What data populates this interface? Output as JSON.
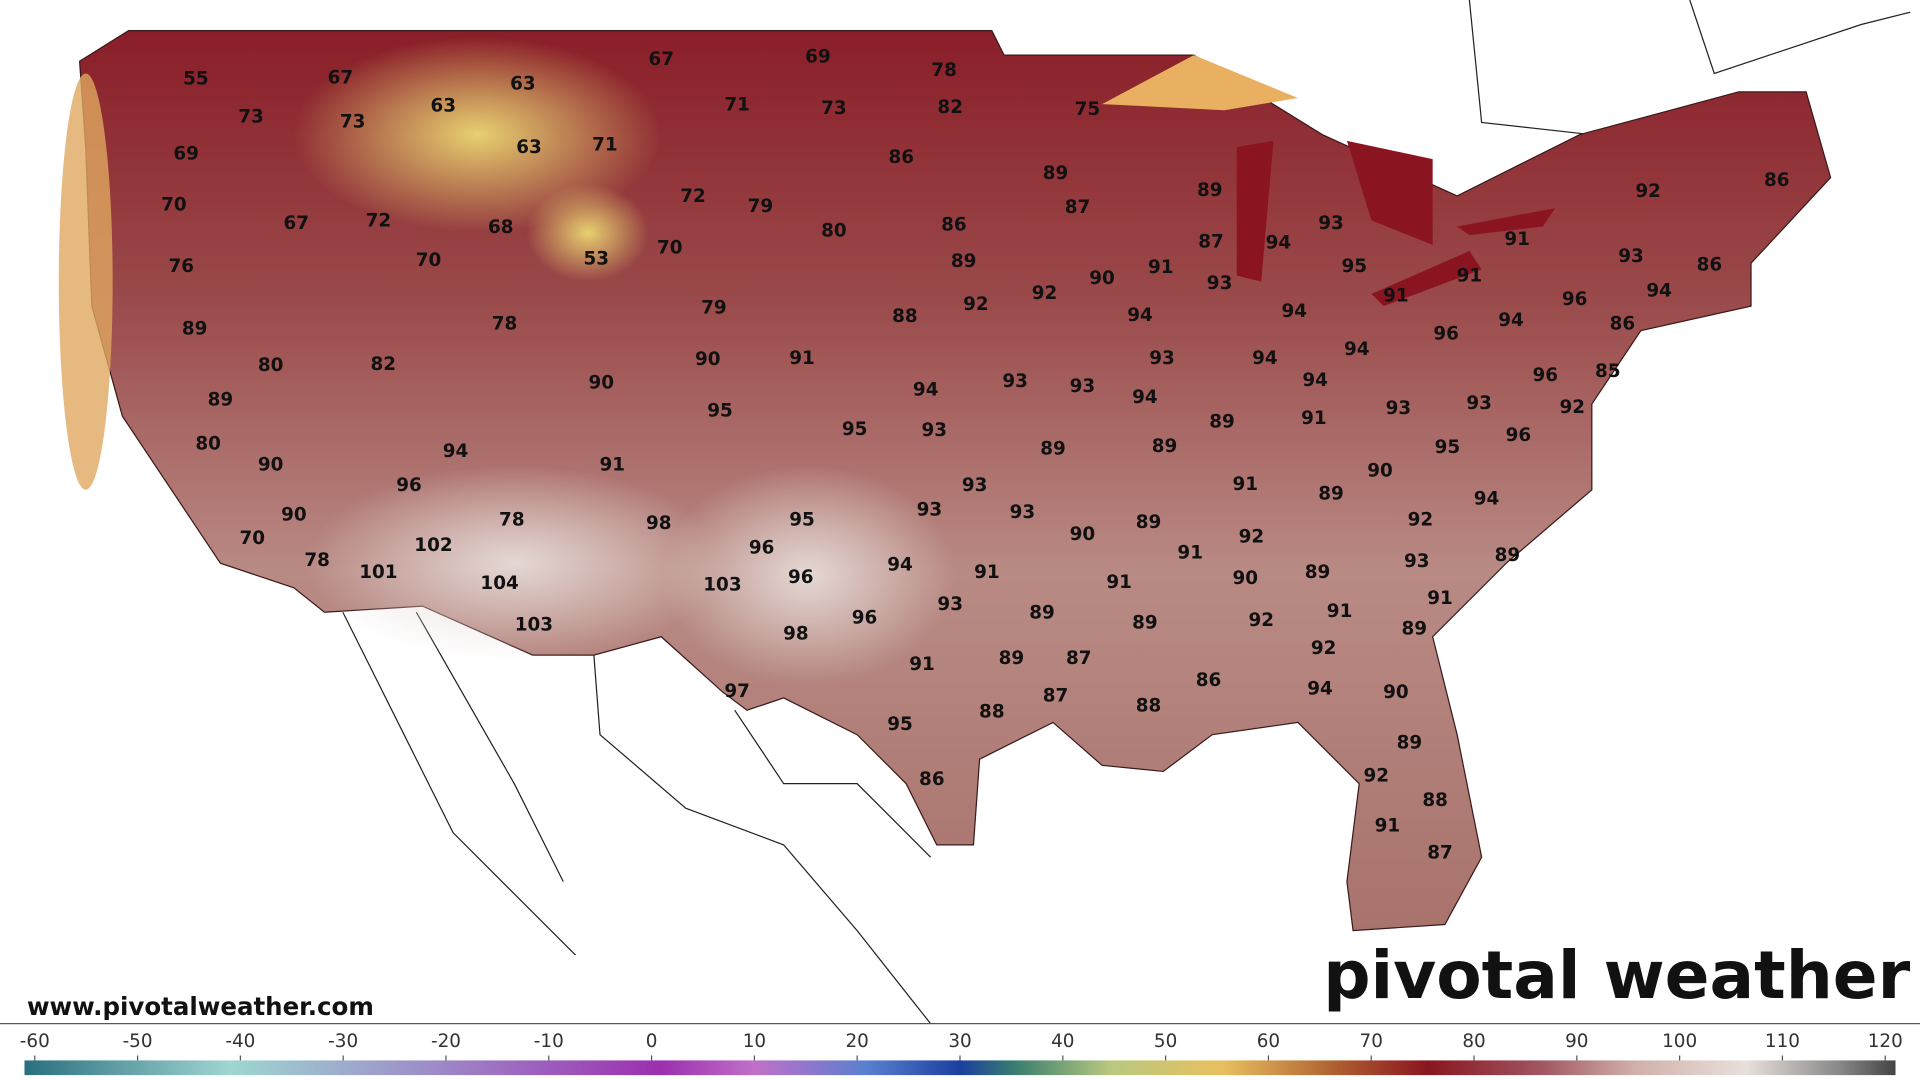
{
  "site_url": "www.pivotalweather.com",
  "logo": "pivotal weather",
  "temperature_labels": [
    55,
    67,
    73,
    73,
    63,
    63,
    67,
    69,
    78,
    71,
    73,
    82,
    75,
    69,
    63,
    71,
    86,
    89,
    87,
    89,
    92,
    86,
    70,
    67,
    72,
    68,
    72,
    79,
    80,
    86,
    93,
    91,
    94,
    87,
    76,
    70,
    53,
    70,
    89,
    93,
    86,
    91,
    95,
    91,
    93,
    90,
    92,
    92,
    91,
    94,
    96,
    79,
    78,
    89,
    88,
    94,
    94,
    94,
    96,
    86,
    94,
    94,
    93,
    90,
    91,
    82,
    80,
    96,
    92,
    85,
    94,
    90,
    94,
    93,
    93,
    94,
    89,
    95,
    93,
    93,
    91,
    89,
    95,
    93,
    96,
    95,
    80,
    89,
    89,
    94,
    90,
    91,
    90,
    96,
    93,
    91,
    89,
    94,
    90,
    78,
    98,
    95,
    93,
    93,
    89,
    92,
    92,
    90,
    70,
    102,
    96,
    91,
    93,
    89,
    78,
    94,
    91,
    89,
    101,
    96,
    90,
    91,
    104,
    103,
    93,
    91,
    91,
    89,
    92,
    96,
    89,
    103,
    98,
    89,
    92,
    91,
    89,
    87,
    86,
    90,
    97,
    94,
    87,
    88,
    88,
    95,
    89,
    92,
    86,
    88,
    91,
    87
  ],
  "colorbar": {
    "lim": [
      -61,
      121
    ],
    "ticks": [
      -60,
      -50,
      -40,
      -30,
      -20,
      -10,
      0,
      10,
      20,
      30,
      40,
      50,
      60,
      70,
      80,
      90,
      100,
      110,
      120
    ]
  }
}
